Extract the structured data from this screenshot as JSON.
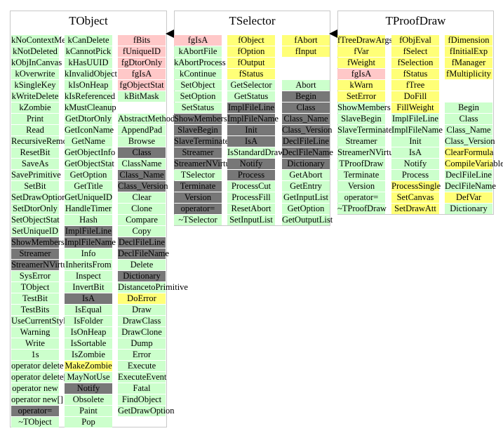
{
  "colors": {
    "pink": "#ffc8c8",
    "yellow": "#ffff77",
    "green": "#ccffcc",
    "gray": "#777777",
    "border": "#c8c8c8"
  },
  "classes": [
    {
      "name": "TObject",
      "columns": [
        [
          [
            "kNoContextMenu",
            "green"
          ],
          [
            "kNotDeleted",
            "green"
          ],
          [
            "kObjInCanvas",
            "green"
          ],
          [
            "kOverwrite",
            "green"
          ],
          [
            "kSingleKey",
            "green"
          ],
          [
            "kWriteDelete",
            "green"
          ],
          [
            "kZombie",
            "green"
          ],
          [
            "Print",
            "green"
          ],
          [
            "Read",
            "green"
          ],
          [
            "RecursiveRemove",
            "green"
          ],
          [
            "ResetBit",
            "green"
          ],
          [
            "SaveAs",
            "green"
          ],
          [
            "SavePrimitive",
            "green"
          ],
          [
            "SetBit",
            "green"
          ],
          [
            "SetDrawOption",
            "green"
          ],
          [
            "SetDtorOnly",
            "green"
          ],
          [
            "SetObjectStat",
            "green"
          ],
          [
            "SetUniqueID",
            "green"
          ],
          [
            "ShowMembers",
            "gray"
          ],
          [
            "Streamer",
            "gray"
          ],
          [
            "StreamerNVirtual",
            "gray"
          ],
          [
            "SysError",
            "green"
          ],
          [
            "TObject",
            "green"
          ],
          [
            "TestBit",
            "green"
          ],
          [
            "TestBits",
            "green"
          ],
          [
            "UseCurrentStyle",
            "green"
          ],
          [
            "Warning",
            "green"
          ],
          [
            "Write",
            "green"
          ],
          [
            "1s",
            "green"
          ],
          [
            "operator delete",
            "green"
          ],
          [
            "operator delete[]",
            "green"
          ],
          [
            "operator new",
            "green"
          ],
          [
            "operator new[]",
            "green"
          ],
          [
            "operator=",
            "gray"
          ],
          [
            "~TObject",
            "green"
          ]
        ],
        [
          [
            "kCanDelete",
            "green"
          ],
          [
            "kCannotPick",
            "green"
          ],
          [
            "kHasUUID",
            "green"
          ],
          [
            "kInvalidObject",
            "green"
          ],
          [
            "kIsOnHeap",
            "green"
          ],
          [
            "kIsReferenced",
            "green"
          ],
          [
            "kMustCleanup",
            "green"
          ],
          [
            "GetDtorOnly",
            "green"
          ],
          [
            "GetIconName",
            "green"
          ],
          [
            "GetName",
            "green"
          ],
          [
            "GetObjectInfo",
            "green"
          ],
          [
            "GetObjectStat",
            "green"
          ],
          [
            "GetOption",
            "green"
          ],
          [
            "GetTitle",
            "green"
          ],
          [
            "GetUniqueID",
            "green"
          ],
          [
            "HandleTimer",
            "green"
          ],
          [
            "Hash",
            "green"
          ],
          [
            "ImplFileLine",
            "gray"
          ],
          [
            "ImplFileName",
            "gray"
          ],
          [
            "Info",
            "green"
          ],
          [
            "InheritsFrom",
            "green"
          ],
          [
            "Inspect",
            "green"
          ],
          [
            "InvertBit",
            "green"
          ],
          [
            "IsA",
            "gray"
          ],
          [
            "IsEqual",
            "green"
          ],
          [
            "IsFolder",
            "green"
          ],
          [
            "IsOnHeap",
            "green"
          ],
          [
            "IsSortable",
            "green"
          ],
          [
            "IsZombie",
            "green"
          ],
          [
            "MakeZombie",
            "yellow"
          ],
          [
            "MayNotUse",
            "green"
          ],
          [
            "Notify",
            "gray"
          ],
          [
            "Obsolete",
            "green"
          ],
          [
            "Paint",
            "green"
          ],
          [
            "Pop",
            "green"
          ]
        ],
        [
          [
            "fBits",
            "pink"
          ],
          [
            "fUniqueID",
            "pink"
          ],
          [
            "fgDtorOnly",
            "pink"
          ],
          [
            "fgIsA",
            "pink"
          ],
          [
            "fgObjectStat",
            "pink"
          ],
          [
            "kBitMask",
            "green"
          ],
          [
            "",
            "none"
          ],
          [
            "AbstractMethod",
            "green"
          ],
          [
            "AppendPad",
            "green"
          ],
          [
            "Browse",
            "green"
          ],
          [
            "Class",
            "gray"
          ],
          [
            "ClassName",
            "green"
          ],
          [
            "Class_Name",
            "gray"
          ],
          [
            "Class_Version",
            "gray"
          ],
          [
            "Clear",
            "green"
          ],
          [
            "Clone",
            "green"
          ],
          [
            "Compare",
            "green"
          ],
          [
            "Copy",
            "green"
          ],
          [
            "DeclFileLine",
            "gray"
          ],
          [
            "DeclFileName",
            "gray"
          ],
          [
            "Delete",
            "green"
          ],
          [
            "Dictionary",
            "gray"
          ],
          [
            "DistancetoPrimitive",
            "green"
          ],
          [
            "DoError",
            "yellow"
          ],
          [
            "Draw",
            "green"
          ],
          [
            "DrawClass",
            "green"
          ],
          [
            "DrawClone",
            "green"
          ],
          [
            "Dump",
            "green"
          ],
          [
            "Error",
            "green"
          ],
          [
            "Execute",
            "green"
          ],
          [
            "ExecuteEvent",
            "green"
          ],
          [
            "Fatal",
            "green"
          ],
          [
            "FindObject",
            "green"
          ],
          [
            "GetDrawOption",
            "green"
          ]
        ]
      ]
    },
    {
      "name": "TSelector",
      "columns": [
        [
          [
            "fgIsA",
            "pink"
          ],
          [
            "kAbortFile",
            "green"
          ],
          [
            "kAbortProcess",
            "green"
          ],
          [
            "kContinue",
            "green"
          ],
          [
            "SetObject",
            "green"
          ],
          [
            "SetOption",
            "green"
          ],
          [
            "SetStatus",
            "green"
          ],
          [
            "ShowMembers",
            "gray"
          ],
          [
            "SlaveBegin",
            "gray"
          ],
          [
            "SlaveTerminate",
            "gray"
          ],
          [
            "Streamer",
            "gray"
          ],
          [
            "StreamerNVirtual",
            "gray"
          ],
          [
            "TSelector",
            "green"
          ],
          [
            "Terminate",
            "gray"
          ],
          [
            "Version",
            "gray"
          ],
          [
            "operator=",
            "gray"
          ],
          [
            "~TSelector",
            "green"
          ]
        ],
        [
          [
            "fObject",
            "yellow"
          ],
          [
            "fOption",
            "yellow"
          ],
          [
            "fOutput",
            "yellow"
          ],
          [
            "fStatus",
            "yellow"
          ],
          [
            "GetSelector",
            "green"
          ],
          [
            "GetStatus",
            "green"
          ],
          [
            "ImplFileLine",
            "gray"
          ],
          [
            "ImplFileName",
            "gray"
          ],
          [
            "Init",
            "gray"
          ],
          [
            "IsA",
            "gray"
          ],
          [
            "IsStandardDraw",
            "green"
          ],
          [
            "Notify",
            "gray"
          ],
          [
            "Process",
            "gray"
          ],
          [
            "ProcessCut",
            "green"
          ],
          [
            "ProcessFill",
            "green"
          ],
          [
            "ResetAbort",
            "green"
          ],
          [
            "SetInputList",
            "green"
          ]
        ],
        [
          [
            "fAbort",
            "yellow"
          ],
          [
            "fInput",
            "yellow"
          ],
          [
            "",
            "none"
          ],
          [
            "",
            "none"
          ],
          [
            "Abort",
            "green"
          ],
          [
            "Begin",
            "gray"
          ],
          [
            "Class",
            "gray"
          ],
          [
            "Class_Name",
            "gray"
          ],
          [
            "Class_Version",
            "gray"
          ],
          [
            "DeclFileLine",
            "gray"
          ],
          [
            "DeclFileName",
            "gray"
          ],
          [
            "Dictionary",
            "gray"
          ],
          [
            "GetAbort",
            "green"
          ],
          [
            "GetEntry",
            "green"
          ],
          [
            "GetInputList",
            "green"
          ],
          [
            "GetOption",
            "green"
          ],
          [
            "GetOutputList",
            "green"
          ]
        ]
      ]
    },
    {
      "name": "TProofDraw",
      "columns": [
        [
          [
            "fTreeDrawArgsParser",
            "yellow"
          ],
          [
            "fVar",
            "yellow"
          ],
          [
            "fWeight",
            "yellow"
          ],
          [
            "fgIsA",
            "pink"
          ],
          [
            "kWarn",
            "yellow"
          ],
          [
            "SetError",
            "yellow"
          ],
          [
            "ShowMembers",
            "green"
          ],
          [
            "SlaveBegin",
            "green"
          ],
          [
            "SlaveTerminate",
            "green"
          ],
          [
            "Streamer",
            "green"
          ],
          [
            "StreamerNVirtual",
            "green"
          ],
          [
            "TProofDraw",
            "green"
          ],
          [
            "Terminate",
            "green"
          ],
          [
            "Version",
            "green"
          ],
          [
            "operator=",
            "green"
          ],
          [
            "~TProofDraw",
            "green"
          ]
        ],
        [
          [
            "fObjEval",
            "yellow"
          ],
          [
            "fSelect",
            "yellow"
          ],
          [
            "fSelection",
            "yellow"
          ],
          [
            "fStatus",
            "yellow"
          ],
          [
            "fTree",
            "yellow"
          ],
          [
            "DoFill",
            "yellow"
          ],
          [
            "FillWeight",
            "yellow"
          ],
          [
            "ImplFileLine",
            "green"
          ],
          [
            "ImplFileName",
            "green"
          ],
          [
            "Init",
            "green"
          ],
          [
            "IsA",
            "green"
          ],
          [
            "Notify",
            "green"
          ],
          [
            "Process",
            "green"
          ],
          [
            "ProcessSingle",
            "yellow"
          ],
          [
            "SetCanvas",
            "yellow"
          ],
          [
            "SetDrawAtt",
            "yellow"
          ]
        ],
        [
          [
            "fDimension",
            "yellow"
          ],
          [
            "fInitialExp",
            "yellow"
          ],
          [
            "fManager",
            "yellow"
          ],
          [
            "fMultiplicity",
            "yellow"
          ],
          [
            "",
            "none"
          ],
          [
            "",
            "none"
          ],
          [
            "Begin",
            "green"
          ],
          [
            "Class",
            "green"
          ],
          [
            "Class_Name",
            "green"
          ],
          [
            "Class_Version",
            "green"
          ],
          [
            "ClearFormula",
            "yellow"
          ],
          [
            "CompileVariables",
            "yellow"
          ],
          [
            "DeclFileLine",
            "green"
          ],
          [
            "DeclFileName",
            "green"
          ],
          [
            "DefVar",
            "yellow"
          ],
          [
            "Dictionary",
            "green"
          ]
        ]
      ]
    }
  ]
}
